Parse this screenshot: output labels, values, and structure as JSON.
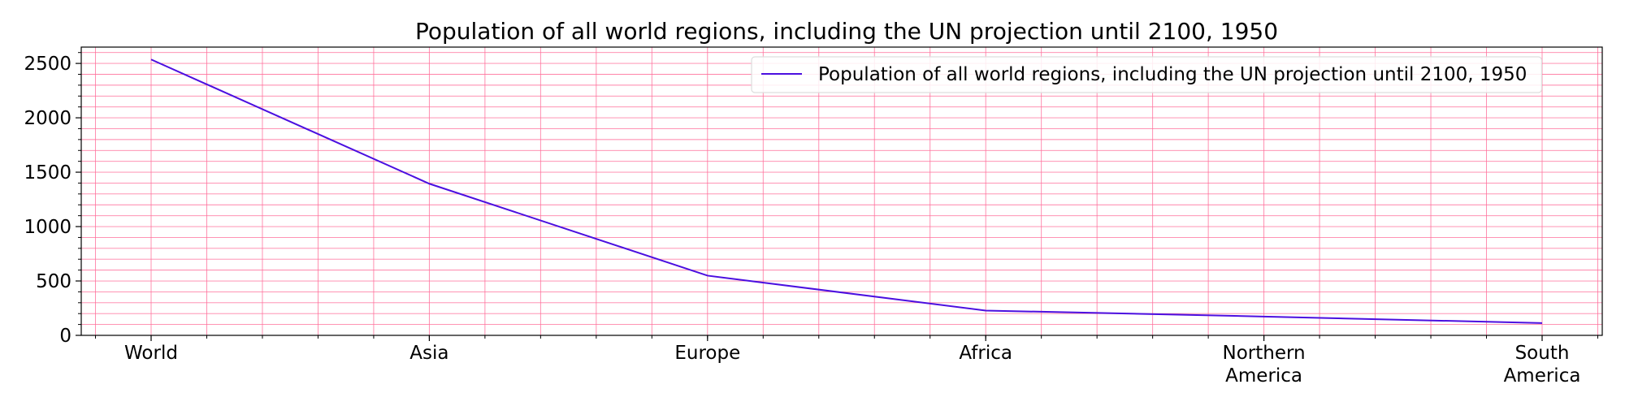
{
  "chart_data": {
    "type": "line",
    "title": "Population of all world regions, including the UN projection until 2100, 1950",
    "xlabel": "",
    "ylabel": "",
    "categories": [
      "World",
      "Asia",
      "Europe",
      "Africa",
      "Northern America",
      "South America"
    ],
    "series": [
      {
        "name": "Population of all world regions, including the UN projection until 2100, 1950",
        "values": [
          2536,
          1394,
          549,
          228,
          173,
          113
        ],
        "color": "#4b0fe0"
      }
    ],
    "ylim": [
      0,
      2650
    ],
    "yticks": [
      0,
      500,
      1000,
      1500,
      2000,
      2500
    ],
    "grid": true,
    "grid_color": "#ff6f9a",
    "legend_position": "top-right"
  }
}
